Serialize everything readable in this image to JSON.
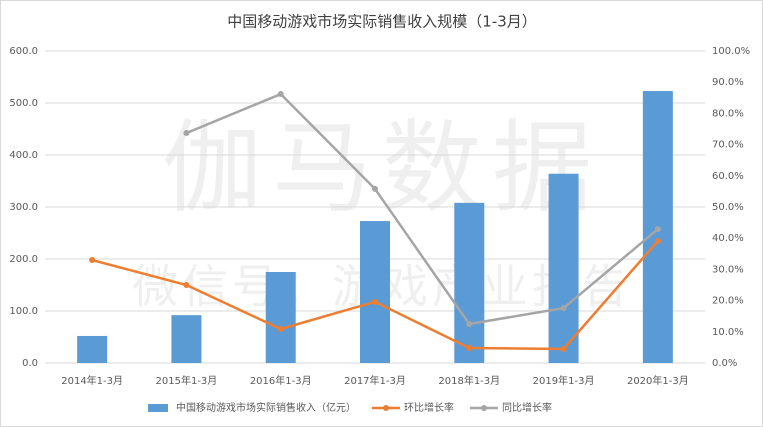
{
  "chart_data": {
    "type": "bar-line",
    "title": "中国移动游戏市场实际销售收入规模（1-3月）",
    "watermark": [
      "伽马数据",
      "微信号：游戏产业报告"
    ],
    "categories": [
      "2014年1-3月",
      "2015年1-3月",
      "2016年1-3月",
      "2017年1-3月",
      "2018年1-3月",
      "2019年1-3月",
      "2020年1-3月"
    ],
    "series": [
      {
        "name": "中国移动游戏市场实际销售收入（亿元）",
        "type": "bar",
        "color": "#5b9bd5",
        "values": [
          52,
          92,
          175,
          273,
          308,
          364,
          523
        ]
      },
      {
        "name": "环比增长率",
        "type": "line",
        "axis": "y2",
        "color": "#ed7d31",
        "values": [
          33.0,
          25.0,
          10.9,
          19.6,
          4.8,
          4.5,
          39.1
        ]
      },
      {
        "name": "同比增长率",
        "type": "line",
        "axis": "y2",
        "color": "#a5a5a5",
        "values": [
          null,
          73.7,
          86.2,
          55.8,
          12.5,
          17.6,
          42.9
        ]
      }
    ],
    "ylim": [
      0,
      600
    ],
    "yticks": [
      {
        "value": 0,
        "label": "0.0"
      },
      {
        "value": 100,
        "label": "100.0"
      },
      {
        "value": 200,
        "label": "200.0"
      },
      {
        "value": 300,
        "label": "300.0"
      },
      {
        "value": 400,
        "label": "400.0"
      },
      {
        "value": 500,
        "label": "500.0"
      },
      {
        "value": 600,
        "label": "600.0"
      }
    ],
    "y2lim": [
      0,
      100
    ],
    "y2ticks": [
      {
        "value": 0,
        "label": "0.0%"
      },
      {
        "value": 10,
        "label": "10.0%"
      },
      {
        "value": 20,
        "label": "20.0%"
      },
      {
        "value": 30,
        "label": "30.0%"
      },
      {
        "value": 40,
        "label": "40.0%"
      },
      {
        "value": 50,
        "label": "50.0%"
      },
      {
        "value": 60,
        "label": "60.0%"
      },
      {
        "value": 70,
        "label": "70.0%"
      },
      {
        "value": 80,
        "label": "80.0%"
      },
      {
        "value": 90,
        "label": "90.0%"
      },
      {
        "value": 100,
        "label": "100.0%"
      }
    ],
    "grid": true
  }
}
